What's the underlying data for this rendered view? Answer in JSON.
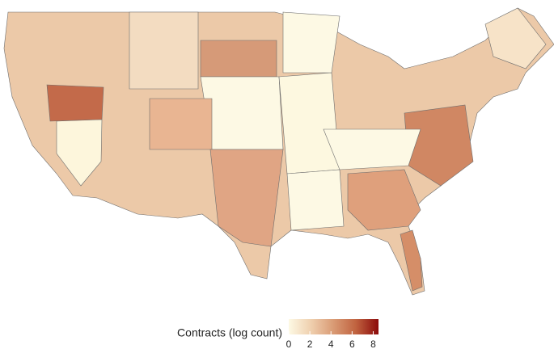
{
  "legend": {
    "title": "Contracts (log count)",
    "limits": [
      0,
      8.5
    ],
    "ticks": [
      0,
      2,
      4,
      6,
      8
    ],
    "colors": [
      "#fdf9e4",
      "#efcfae",
      "#d99a74",
      "#c0623f",
      "#8b0a0a"
    ]
  }
}
